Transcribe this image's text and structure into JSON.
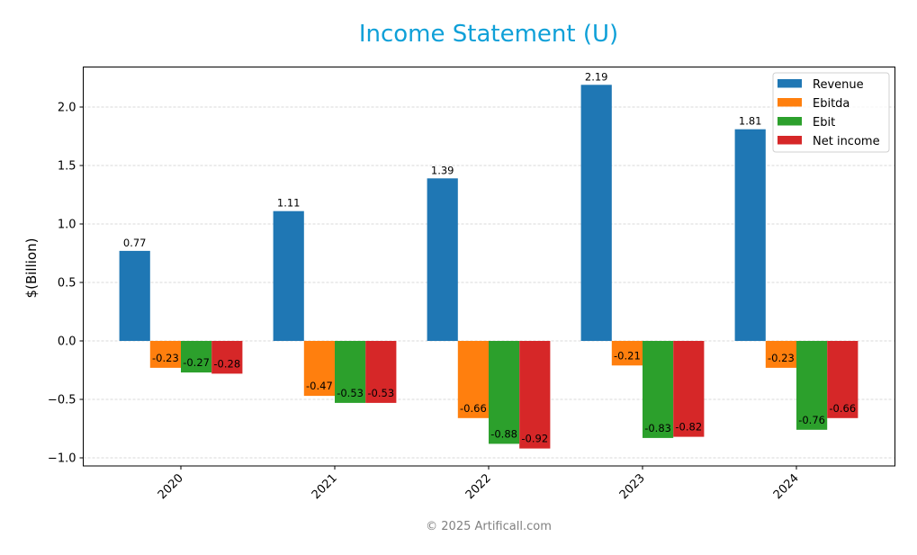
{
  "chart_data": {
    "type": "bar",
    "title": "Income Statement (U)",
    "xlabel": "",
    "ylabel": "$(Billion)",
    "categories": [
      "2020",
      "2021",
      "2022",
      "2023",
      "2024"
    ],
    "series": [
      {
        "name": "Revenue",
        "color": "#1f77b4",
        "values": [
          0.77,
          1.11,
          1.39,
          2.19,
          1.81
        ]
      },
      {
        "name": "Ebitda",
        "color": "#ff7f0e",
        "values": [
          -0.23,
          -0.47,
          -0.66,
          -0.21,
          -0.23
        ]
      },
      {
        "name": "Ebit",
        "color": "#2ca02c",
        "values": [
          -0.27,
          -0.53,
          -0.88,
          -0.83,
          -0.76
        ]
      },
      {
        "name": "Net income",
        "color": "#d62728",
        "values": [
          -0.28,
          -0.53,
          -0.92,
          -0.82,
          -0.66
        ]
      }
    ],
    "ylim": [
      -1.07,
      2.35
    ],
    "yticks": [
      -1.0,
      -0.5,
      0.0,
      0.5,
      1.0,
      1.5,
      2.0
    ],
    "ytick_labels": [
      "−1.0",
      "−0.5",
      "0.0",
      "0.5",
      "1.0",
      "1.5",
      "2.0"
    ],
    "grid": true,
    "legend_position": "upper right"
  },
  "title_color": "#0fa0d8",
  "footer": "© 2025 Artificall.com"
}
